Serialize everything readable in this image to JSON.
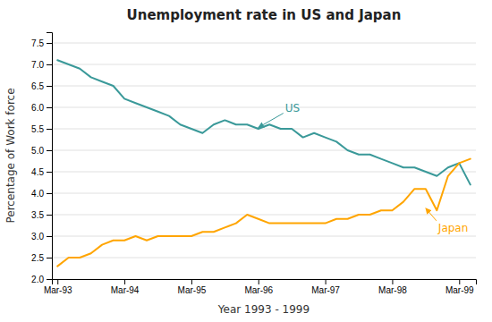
{
  "chart_data": {
    "type": "line",
    "title": "Unemployment rate in US and Japan",
    "xlabel": "Year 1993 - 1999",
    "ylabel": "Percentage of Work force",
    "categories": [
      "Mar-93",
      null,
      null,
      null,
      null,
      null,
      "Mar-94",
      null,
      null,
      null,
      null,
      null,
      "Mar-95",
      null,
      null,
      null,
      null,
      null,
      "Mar-96",
      null,
      null,
      null,
      null,
      null,
      "Mar-97",
      null,
      null,
      null,
      null,
      null,
      "Mar-98",
      null,
      null,
      null,
      null,
      null,
      "Mar-99",
      null
    ],
    "series": [
      {
        "name": "US",
        "color": "#3A9999",
        "values": [
          7.1,
          7.0,
          6.9,
          6.7,
          6.6,
          6.5,
          6.2,
          6.1,
          6.0,
          5.9,
          5.8,
          5.6,
          5.5,
          5.4,
          5.6,
          5.7,
          5.6,
          5.6,
          5.5,
          5.6,
          5.5,
          5.5,
          5.3,
          5.4,
          5.3,
          5.2,
          5.0,
          4.9,
          4.9,
          4.8,
          4.7,
          4.6,
          4.6,
          4.5,
          4.4,
          4.6,
          4.7,
          4.2
        ]
      },
      {
        "name": "Japan",
        "color": "#FFA500",
        "values": [
          2.3,
          2.5,
          2.5,
          2.6,
          2.8,
          2.9,
          2.9,
          3.0,
          2.9,
          3.0,
          3.0,
          3.0,
          3.0,
          3.1,
          3.1,
          3.2,
          3.3,
          3.5,
          3.4,
          3.3,
          3.3,
          3.3,
          3.3,
          3.3,
          3.3,
          3.4,
          3.4,
          3.5,
          3.5,
          3.6,
          3.6,
          3.8,
          4.1,
          4.1,
          3.6,
          4.4,
          4.7,
          4.8
        ]
      }
    ],
    "ylim": [
      2.0,
      7.75
    ],
    "yticks": [
      {
        "value": 2.0,
        "label": "2.0"
      },
      2.5,
      {
        "value": 3.0,
        "label": "3.0"
      },
      3.5,
      {
        "value": 4.0,
        "label": "4.0"
      },
      4.5,
      {
        "value": 5.0,
        "label": "5.0"
      },
      5.5,
      {
        "value": 6.0,
        "label": "6.0"
      },
      6.5,
      {
        "value": 7.0,
        "label": "7.0"
      },
      7.5
    ],
    "grid": true,
    "annotations": [
      {
        "text": "US",
        "x": 18,
        "y": 5.53
      },
      {
        "text": "Japan",
        "x": 33,
        "y": 3.65
      }
    ]
  }
}
